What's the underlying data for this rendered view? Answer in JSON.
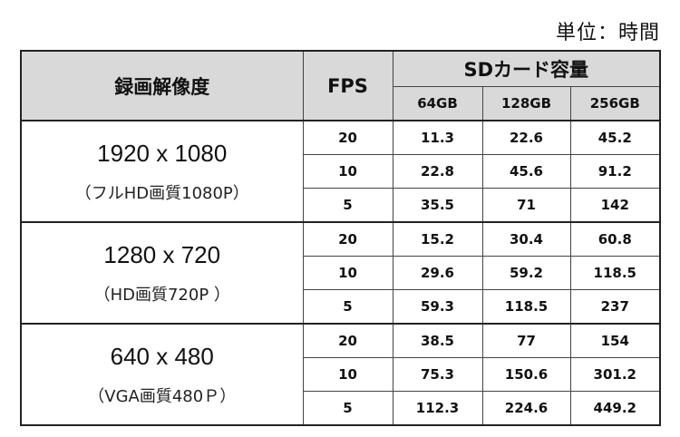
{
  "unit_label": "単位：時間",
  "headers": {
    "resolution": "録画解像度",
    "fps": "FPS",
    "capacity": "SDカード容量",
    "sizes": [
      "64GB",
      "128GB",
      "256GB"
    ]
  },
  "groups": [
    {
      "resolution": "1920 x 1080",
      "quality": "（フルHD画質1080P）",
      "rows": [
        {
          "fps": "20",
          "values": [
            "11.3",
            "22.6",
            "45.2"
          ]
        },
        {
          "fps": "10",
          "values": [
            "22.8",
            "45.6",
            "91.2"
          ]
        },
        {
          "fps": "5",
          "values": [
            "35.5",
            "71",
            "142"
          ]
        }
      ]
    },
    {
      "resolution": "1280 x 720",
      "quality": "（HD画質720P ）",
      "rows": [
        {
          "fps": "20",
          "values": [
            "15.2",
            "30.4",
            "60.8"
          ]
        },
        {
          "fps": "10",
          "values": [
            "29.6",
            "59.2",
            "118.5"
          ]
        },
        {
          "fps": "5",
          "values": [
            "59.3",
            "118.5",
            "237"
          ]
        }
      ]
    },
    {
      "resolution": "640 x 480",
      "quality": "（VGA画質480Ｐ）",
      "rows": [
        {
          "fps": "20",
          "values": [
            "38.5",
            "77",
            "154"
          ]
        },
        {
          "fps": "10",
          "values": [
            "75.3",
            "150.6",
            "301.2"
          ]
        },
        {
          "fps": "5",
          "values": [
            "112.3",
            "224.6",
            "449.2"
          ]
        }
      ]
    }
  ]
}
